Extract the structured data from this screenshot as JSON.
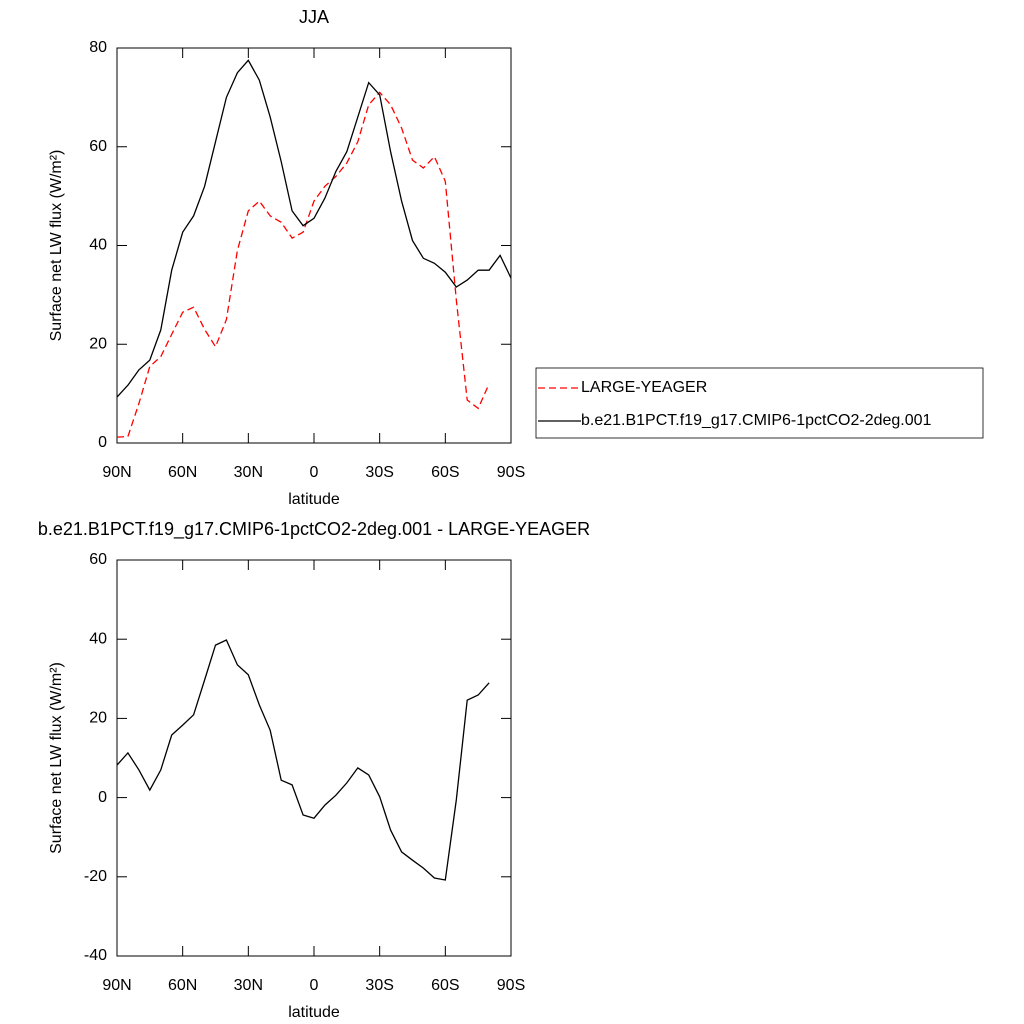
{
  "chart_data": [
    {
      "type": "line",
      "title": "JJA",
      "xlabel": "latitude",
      "ylabel": "Surface net LW flux (W/m²)",
      "x": [
        90,
        85,
        80,
        75,
        70,
        65,
        60,
        55,
        50,
        45,
        40,
        35,
        30,
        25,
        20,
        15,
        10,
        5,
        0,
        -5,
        -10,
        -15,
        -20,
        -25,
        -30,
        -35,
        -40,
        -45,
        -50,
        -55,
        -60,
        -65,
        -70,
        -75,
        -80,
        -85,
        -90
      ],
      "series": [
        {
          "name": "LARGE-YEAGER",
          "color": "#ff0000",
          "dash": true,
          "values": [
            1.2,
            1.3,
            8,
            15.5,
            17.5,
            22,
            26.5,
            27.5,
            23,
            19.5,
            25,
            39,
            47,
            49,
            46,
            44.7,
            41.5,
            42.7,
            49,
            52,
            54,
            56.7,
            61,
            68.5,
            71,
            68.5,
            63.8,
            57.3,
            55.7,
            58,
            53,
            29,
            8.7,
            7,
            12,
            null,
            null
          ]
        },
        {
          "name": "b.e21.B1PCT.f19_g17.CMIP6-1pctCO2-2deg.001",
          "color": "#000000",
          "dash": false,
          "values": [
            9.3,
            11.7,
            14.8,
            16.8,
            22.9,
            35,
            42.7,
            46,
            52,
            61,
            70,
            75,
            77.5,
            73.5,
            66,
            57,
            47,
            44,
            45.5,
            49.6,
            55,
            59,
            66,
            73,
            70.5,
            59,
            49,
            41,
            37.4,
            36.4,
            34.6,
            31.6,
            33,
            35,
            35,
            38,
            33.4
          ]
        }
      ],
      "xlim": [
        90,
        -90
      ],
      "xticks": [
        {
          "value": 90,
          "label": "90N"
        },
        {
          "value": 60,
          "label": "60N"
        },
        {
          "value": 30,
          "label": "30N"
        },
        0,
        {
          "value": -30,
          "label": "30S"
        },
        {
          "value": -60,
          "label": "60S"
        },
        {
          "value": -90,
          "label": "90S"
        }
      ],
      "ylim": [
        0,
        80
      ],
      "yticks": [
        0,
        20,
        40,
        60,
        80
      ],
      "legend": "right"
    },
    {
      "type": "line",
      "title": "b.e21.B1PCT.f19_g17.CMIP6-1pctCO2-2deg.001 - LARGE-YEAGER",
      "xlabel": "latitude",
      "ylabel": "Surface net LW flux (W/m²)",
      "x": [
        90,
        85,
        80,
        75,
        70,
        65,
        60,
        55,
        50,
        45,
        40,
        35,
        30,
        25,
        20,
        15,
        10,
        5,
        0,
        -5,
        -10,
        -15,
        -20,
        -25,
        -30,
        -35,
        -40,
        -45,
        -50,
        -55,
        -60,
        -65,
        -70,
        -75,
        -80,
        -85,
        -90
      ],
      "series": [
        {
          "color": "#000000",
          "dash": false,
          "values": [
            8.2,
            11.3,
            7,
            1.9,
            7,
            15.8,
            18.3,
            20.9,
            29.7,
            38.5,
            39.8,
            33.5,
            31,
            23.4,
            17,
            4.4,
            3.2,
            -4.4,
            -5.2,
            -1.9,
            0.6,
            3.7,
            7.5,
            5.7,
            0.2,
            -8.2,
            -13.7,
            -15.8,
            -17.8,
            -20.3,
            -20.8,
            -0.6,
            24.6,
            25.9,
            29,
            null,
            null
          ]
        }
      ],
      "xlim": [
        90,
        -90
      ],
      "xticks": [
        {
          "value": 90,
          "label": "90N"
        },
        {
          "value": 60,
          "label": "60N"
        },
        {
          "value": 30,
          "label": "30N"
        },
        0,
        {
          "value": -30,
          "label": "30S"
        },
        {
          "value": -60,
          "label": "60S"
        },
        {
          "value": -90,
          "label": "90S"
        }
      ],
      "ylim": [
        -40,
        60
      ],
      "yticks": [
        -40,
        -20,
        0,
        20,
        40,
        60
      ]
    }
  ]
}
